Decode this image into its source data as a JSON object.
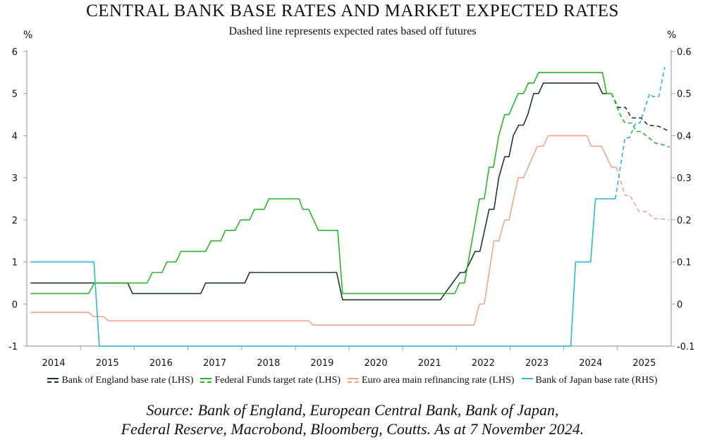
{
  "chart_data": {
    "type": "line",
    "title": "CENTRAL BANK BASE RATES AND MARKET EXPECTED RATES",
    "subtitle": "Dashed line represents expected rates based off futures",
    "ylabel_left": "%",
    "ylabel_right": "%",
    "xlim": [
      2014,
      2026
    ],
    "ylim_left": [
      -1,
      6
    ],
    "ylim_right": [
      -0.1,
      0.6
    ],
    "x_ticks": [
      "2014",
      "2015",
      "2016",
      "2017",
      "2018",
      "2019",
      "2020",
      "2021",
      "2022",
      "2023",
      "2024",
      "2025"
    ],
    "y_ticks_left": [
      "6",
      "5",
      "4",
      "3",
      "2",
      "1",
      "0",
      "-1"
    ],
    "y_ticks_right": [
      "0.6",
      "0.5",
      "0.4",
      "0.3",
      "0.2",
      "0.1",
      "0",
      "-0.1"
    ],
    "grid": false,
    "legend_placement": "bottom",
    "series": [
      {
        "name": "Bank of England base rate (LHS)",
        "axis": "left",
        "color": "#1b3b26",
        "actual": [
          [
            2014.07,
            0.5
          ],
          [
            2015.88,
            0.5
          ],
          [
            2015.97,
            0.25
          ],
          [
            2017.24,
            0.25
          ],
          [
            2017.33,
            0.5
          ],
          [
            2018.06,
            0.5
          ],
          [
            2018.15,
            0.75
          ],
          [
            2019.77,
            0.75
          ],
          [
            2019.88,
            0.1
          ],
          [
            2021.7,
            0.1
          ],
          [
            2022.07,
            0.75
          ],
          [
            2022.16,
            0.75
          ],
          [
            2022.35,
            1.25
          ],
          [
            2022.44,
            1.25
          ],
          [
            2022.61,
            2.25
          ],
          [
            2022.7,
            2.25
          ],
          [
            2022.79,
            3.0
          ],
          [
            2022.9,
            3.5
          ],
          [
            2022.98,
            3.5
          ],
          [
            2023.06,
            4.0
          ],
          [
            2023.16,
            4.25
          ],
          [
            2023.25,
            4.25
          ],
          [
            2023.33,
            4.5
          ],
          [
            2023.44,
            5.0
          ],
          [
            2023.53,
            5.0
          ],
          [
            2023.62,
            5.25
          ],
          [
            2024.63,
            5.25
          ],
          [
            2024.72,
            5.0
          ],
          [
            2024.89,
            5.0
          ]
        ],
        "expected": [
          [
            2024.89,
            5.0
          ],
          [
            2025.01,
            4.67
          ],
          [
            2025.15,
            4.67
          ],
          [
            2025.26,
            4.42
          ],
          [
            2025.44,
            4.42
          ],
          [
            2025.57,
            4.25
          ],
          [
            2025.77,
            4.22
          ],
          [
            2025.97,
            4.1
          ]
        ]
      },
      {
        "name": "Federal Funds target rate (LHS)",
        "axis": "left",
        "color": "#2cb52c",
        "actual": [
          [
            2014.07,
            0.25
          ],
          [
            2015.15,
            0.25
          ],
          [
            2015.26,
            0.5
          ],
          [
            2016.24,
            0.5
          ],
          [
            2016.34,
            0.75
          ],
          [
            2016.52,
            0.75
          ],
          [
            2016.61,
            1.0
          ],
          [
            2016.78,
            1.0
          ],
          [
            2016.87,
            1.25
          ],
          [
            2017.33,
            1.25
          ],
          [
            2017.43,
            1.5
          ],
          [
            2017.61,
            1.5
          ],
          [
            2017.7,
            1.75
          ],
          [
            2017.88,
            1.75
          ],
          [
            2017.98,
            2.0
          ],
          [
            2018.15,
            2.0
          ],
          [
            2018.24,
            2.25
          ],
          [
            2018.42,
            2.25
          ],
          [
            2018.51,
            2.5
          ],
          [
            2019.07,
            2.5
          ],
          [
            2019.14,
            2.25
          ],
          [
            2019.25,
            2.25
          ],
          [
            2019.43,
            1.75
          ],
          [
            2019.79,
            1.75
          ],
          [
            2019.88,
            0.25
          ],
          [
            2021.97,
            0.25
          ],
          [
            2022.06,
            0.5
          ],
          [
            2022.15,
            0.5
          ],
          [
            2022.43,
            2.5
          ],
          [
            2022.52,
            2.5
          ],
          [
            2022.61,
            3.25
          ],
          [
            2022.69,
            3.25
          ],
          [
            2022.79,
            4.0
          ],
          [
            2022.9,
            4.5
          ],
          [
            2022.98,
            4.5
          ],
          [
            2023.15,
            5.0
          ],
          [
            2023.25,
            5.0
          ],
          [
            2023.34,
            5.25
          ],
          [
            2023.44,
            5.25
          ],
          [
            2023.53,
            5.5
          ],
          [
            2024.72,
            5.5
          ],
          [
            2024.8,
            5.0
          ],
          [
            2024.89,
            5.0
          ]
        ],
        "expected": [
          [
            2024.89,
            5.0
          ],
          [
            2025.05,
            4.5
          ],
          [
            2025.14,
            4.3
          ],
          [
            2025.27,
            4.3
          ],
          [
            2025.35,
            4.1
          ],
          [
            2025.44,
            4.1
          ],
          [
            2025.71,
            3.82
          ],
          [
            2025.81,
            3.8
          ],
          [
            2025.97,
            3.73
          ]
        ]
      },
      {
        "name": "Euro area main refinancing rate (LHS)",
        "axis": "left",
        "color": "#f2a38e",
        "actual": [
          [
            2014.07,
            -0.2
          ],
          [
            2015.15,
            -0.2
          ],
          [
            2015.25,
            -0.3
          ],
          [
            2015.43,
            -0.3
          ],
          [
            2015.52,
            -0.4
          ],
          [
            2019.25,
            -0.4
          ],
          [
            2019.33,
            -0.5
          ],
          [
            2022.33,
            -0.5
          ],
          [
            2022.43,
            0.0
          ],
          [
            2022.52,
            0.0
          ],
          [
            2022.7,
            1.5
          ],
          [
            2022.79,
            1.5
          ],
          [
            2022.9,
            2.0
          ],
          [
            2022.98,
            2.0
          ],
          [
            2023.15,
            3.0
          ],
          [
            2023.25,
            3.0
          ],
          [
            2023.51,
            3.75
          ],
          [
            2023.62,
            3.75
          ],
          [
            2023.71,
            4.0
          ],
          [
            2024.43,
            4.0
          ],
          [
            2024.51,
            3.75
          ],
          [
            2024.7,
            3.75
          ],
          [
            2024.89,
            3.25
          ],
          [
            2024.98,
            3.25
          ]
        ],
        "expected": [
          [
            2024.98,
            3.25
          ],
          [
            2025.14,
            2.58
          ],
          [
            2025.23,
            2.58
          ],
          [
            2025.4,
            2.2
          ],
          [
            2025.54,
            2.2
          ],
          [
            2025.68,
            2.03
          ],
          [
            2025.84,
            2.02
          ],
          [
            2025.97,
            2.0
          ]
        ]
      },
      {
        "name": "Bank of Japan base rate (RHS)",
        "axis": "right",
        "color": "#2bb9d1",
        "actual": [
          [
            2014.07,
            0.1
          ],
          [
            2015.25,
            0.1
          ],
          [
            2015.35,
            -0.1
          ],
          [
            2024.13,
            -0.1
          ],
          [
            2024.22,
            0.1
          ],
          [
            2024.5,
            0.1
          ],
          [
            2024.59,
            0.25
          ],
          [
            2024.96,
            0.25
          ]
        ],
        "expected": [
          [
            2024.96,
            0.25
          ],
          [
            2025.14,
            0.395
          ],
          [
            2025.22,
            0.395
          ],
          [
            2025.34,
            0.43
          ],
          [
            2025.42,
            0.43
          ],
          [
            2025.6,
            0.5
          ],
          [
            2025.66,
            0.493
          ],
          [
            2025.77,
            0.493
          ],
          [
            2025.88,
            0.563
          ]
        ]
      }
    ]
  },
  "source_lines": [
    "Source: Bank of England, European Central Bank, Bank of Japan,",
    "Federal Reserve, Macrobond, Bloomberg, Coutts. As at 7 November 2024."
  ]
}
